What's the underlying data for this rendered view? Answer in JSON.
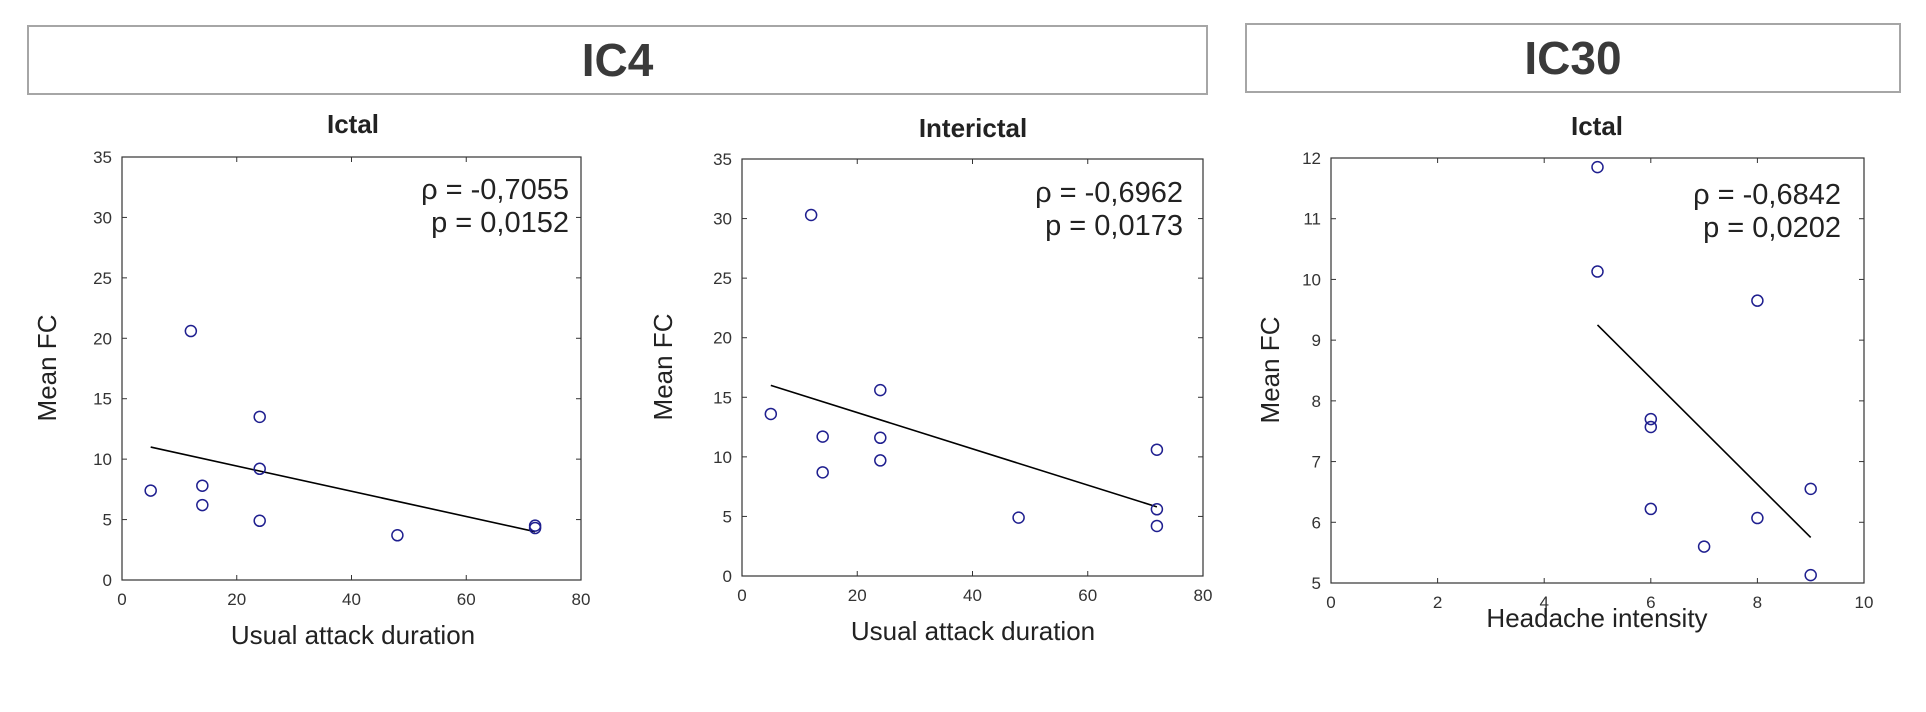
{
  "groups": [
    {
      "label": "IC4"
    },
    {
      "label": "IC30"
    }
  ],
  "chart_data": [
    {
      "type": "scatter",
      "title": "Ictal",
      "xlabel": "Usual attack duration",
      "ylabel": "Mean FC",
      "xlim": [
        0,
        80
      ],
      "ylim": [
        0,
        35
      ],
      "xticks": [
        0,
        20,
        40,
        60,
        80
      ],
      "yticks": [
        0,
        5,
        10,
        15,
        20,
        25,
        30,
        35
      ],
      "x": [
        5,
        12,
        14,
        14,
        24,
        24,
        24,
        48,
        72,
        72
      ],
      "y": [
        7.4,
        20.6,
        7.8,
        6.2,
        13.5,
        9.2,
        4.9,
        3.7,
        4.5,
        4.3
      ],
      "fit_line": {
        "x": [
          5,
          72
        ],
        "y": [
          11.0,
          4.0
        ]
      },
      "rho_text": "ρ = -0,7055",
      "p_text": "p = 0,0152",
      "marker_color": "#1f1f8f",
      "grid": false
    },
    {
      "type": "scatter",
      "title": "Interictal",
      "xlabel": "Usual attack duration",
      "ylabel": "Mean FC",
      "xlim": [
        0,
        80
      ],
      "ylim": [
        0,
        35
      ],
      "xticks": [
        0,
        20,
        40,
        60,
        80
      ],
      "yticks": [
        0,
        5,
        10,
        15,
        20,
        25,
        30,
        35
      ],
      "x": [
        5,
        12,
        14,
        14,
        24,
        24,
        24,
        48,
        72,
        72,
        72
      ],
      "y": [
        13.6,
        30.3,
        11.7,
        8.7,
        15.6,
        11.6,
        9.7,
        4.9,
        10.6,
        5.6,
        4.2
      ],
      "fit_line": {
        "x": [
          5,
          72
        ],
        "y": [
          16.0,
          5.8
        ]
      },
      "rho_text": "ρ = -0,6962",
      "p_text": "p = 0,0173",
      "marker_color": "#1f1f8f",
      "grid": false
    },
    {
      "type": "scatter",
      "title": "Ictal",
      "xlabel": "Headache intensity",
      "ylabel": "Mean FC",
      "xlim": [
        0,
        10
      ],
      "ylim": [
        5,
        12
      ],
      "xticks": [
        0,
        2,
        4,
        6,
        8,
        10
      ],
      "yticks": [
        5,
        6,
        7,
        8,
        9,
        10,
        11,
        12
      ],
      "x": [
        5,
        5,
        6,
        6,
        6,
        7,
        8,
        8,
        9,
        9
      ],
      "y": [
        11.85,
        10.13,
        7.7,
        7.57,
        6.22,
        5.6,
        9.65,
        6.07,
        6.55,
        5.13
      ],
      "fit_line": {
        "x": [
          5,
          9
        ],
        "y": [
          9.25,
          5.75
        ]
      },
      "rho_text": "ρ = -0,6842",
      "p_text": "p = 0,0202",
      "marker_color": "#1f1f8f",
      "grid": false
    }
  ]
}
